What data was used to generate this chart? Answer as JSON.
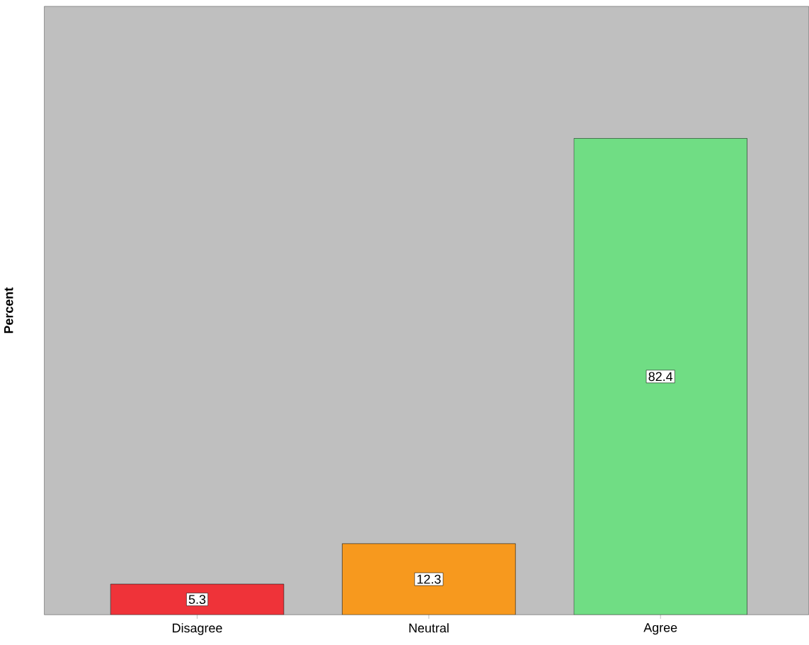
{
  "chart_data": {
    "type": "bar",
    "ylabel": "Percent",
    "categories": [
      "Disagree",
      "Neutral",
      "Agree"
    ],
    "values": [
      5.3,
      12.3,
      82.4
    ],
    "colors": [
      "#ef3339",
      "#f7991e",
      "#70dd84"
    ],
    "data_labels": true
  }
}
